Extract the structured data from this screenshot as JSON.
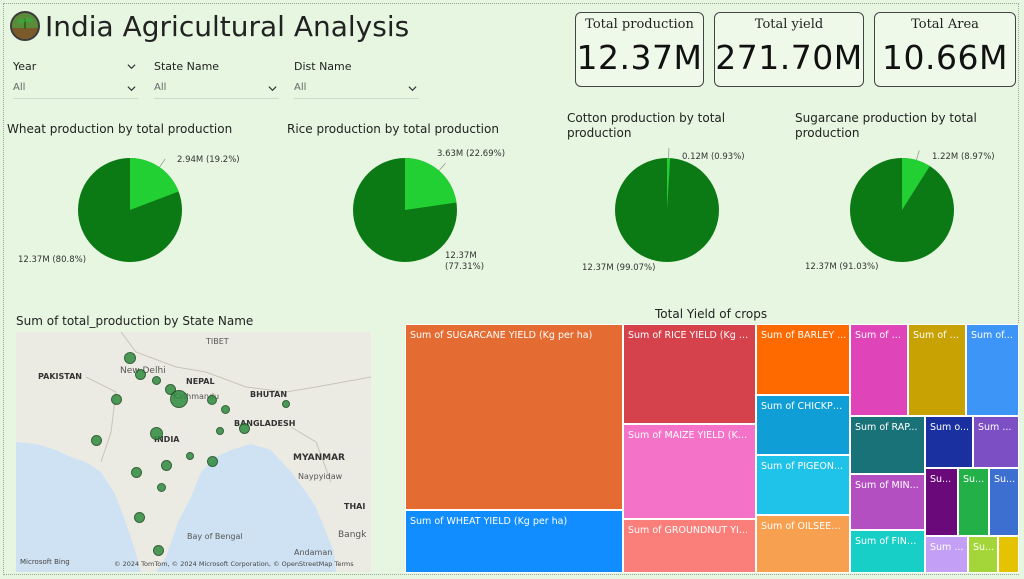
{
  "header": {
    "title": "India Agricultural Analysis",
    "logo_icon": "farm-logo-icon"
  },
  "filters": [
    {
      "label": "Year",
      "value": "All"
    },
    {
      "label": "State Name",
      "value": "All"
    },
    {
      "label": "Dist Name",
      "value": "All"
    }
  ],
  "kpis": [
    {
      "label": "Total production",
      "value": "12.37M"
    },
    {
      "label": "Total yield",
      "value": "271.70M"
    },
    {
      "label": "Total Area",
      "value": "10.66M"
    }
  ],
  "pies": [
    {
      "title": "Wheat production by total production",
      "small_label": "2.94M (19.2%)",
      "large_label": "12.37M (80.8%)"
    },
    {
      "title": "Rice production by total production",
      "small_label": "3.63M (22.69%)",
      "large_label_1": "12.37M",
      "large_label_2": "(77.31%)"
    },
    {
      "title_1": "Cotton production by total",
      "title_2": "production",
      "small_label": "0.12M (0.93%)",
      "large_label": "12.37M (99.07%)"
    },
    {
      "title_1": "Sugarcane production by total",
      "title_2": "production",
      "small_label": "1.22M (8.97%)",
      "large_label": "12.37M (91.03%)"
    }
  ],
  "chart_data": [
    {
      "type": "pie",
      "title": "Wheat production by total production",
      "values": [
        2.94,
        12.37
      ],
      "percents": [
        19.2,
        80.8
      ],
      "colors": [
        "#22d033",
        "#0b7a14"
      ]
    },
    {
      "type": "pie",
      "title": "Rice production by total production",
      "values": [
        3.63,
        12.37
      ],
      "percents": [
        22.69,
        77.31
      ],
      "colors": [
        "#22d033",
        "#0b7a14"
      ]
    },
    {
      "type": "pie",
      "title": "Cotton production by total production",
      "values": [
        0.12,
        12.37
      ],
      "percents": [
        0.93,
        99.07
      ],
      "colors": [
        "#22d033",
        "#0b7a14"
      ]
    },
    {
      "type": "pie",
      "title": "Sugarcane production by total production",
      "values": [
        1.22,
        12.37
      ],
      "percents": [
        8.97,
        91.03
      ],
      "colors": [
        "#22d033",
        "#0b7a14"
      ]
    }
  ],
  "map": {
    "title": "Sum of total_production by State Name",
    "labels": [
      "PAKISTAN",
      "TIBET",
      "New Delhi",
      "NEPAL",
      "Kathmandu",
      "BHUTAN",
      "BANGLADESH",
      "INDIA",
      "MYANMAR",
      "Naypyidaw",
      "THAI",
      "Bay of Bengal",
      "Bangk",
      "Andaman"
    ],
    "attribution": "© 2024 TomTom, © 2024 Microsoft Corporation, © OpenStreetMap  Terms",
    "bing": "Microsoft Bing"
  },
  "treemap": {
    "title": "Total Yield of crops",
    "tiles": [
      {
        "label": "Sum of SUGARCANE YIELD (Kg per ha)",
        "color": "#e46c32"
      },
      {
        "label": "Sum of WHEAT YIELD (Kg per ha)",
        "color": "#118dff"
      },
      {
        "label": "Sum of RICE YIELD (Kg p...",
        "color": "#d6424c"
      },
      {
        "label": "Sum of MAIZE YIELD (Kg ...",
        "color": "#f472c8"
      },
      {
        "label": "Sum of GROUNDNUT YI...",
        "color": "#fa7f7a"
      },
      {
        "label": "Sum of BARLEY ...",
        "color": "#ff6a00"
      },
      {
        "label": "Sum of CHICKPE...",
        "color": "#0f9fd6"
      },
      {
        "label": "Sum of PIGEON...",
        "color": "#1fc2e8"
      },
      {
        "label": "Sum of OILSEED...",
        "color": "#f7a050"
      },
      {
        "label": "Sum of S...",
        "color": "#e044b9"
      },
      {
        "label": "Sum of K...",
        "color": "#c8a102"
      },
      {
        "label": "Sum of...",
        "color": "#3d95f7"
      },
      {
        "label": "Sum of RAP...",
        "color": "#197278"
      },
      {
        "label": "Sum o...",
        "color": "#1a30a0"
      },
      {
        "label": "Sum ...",
        "color": "#7c4fc4"
      },
      {
        "label": "Sum of MIN...",
        "color": "#b44fc2"
      },
      {
        "label": "Su...",
        "color": "#6a0a7a"
      },
      {
        "label": "Su...",
        "color": "#23b048"
      },
      {
        "label": "Su...",
        "color": "#3d6fd1"
      },
      {
        "label": "Sum of FING...",
        "color": "#17cfc6"
      },
      {
        "label": "Sum ...",
        "color": "#c39ff5"
      },
      {
        "label": "Su...",
        "color": "#a4d63a"
      },
      {
        "label": "",
        "color": "#e5c300"
      }
    ]
  }
}
